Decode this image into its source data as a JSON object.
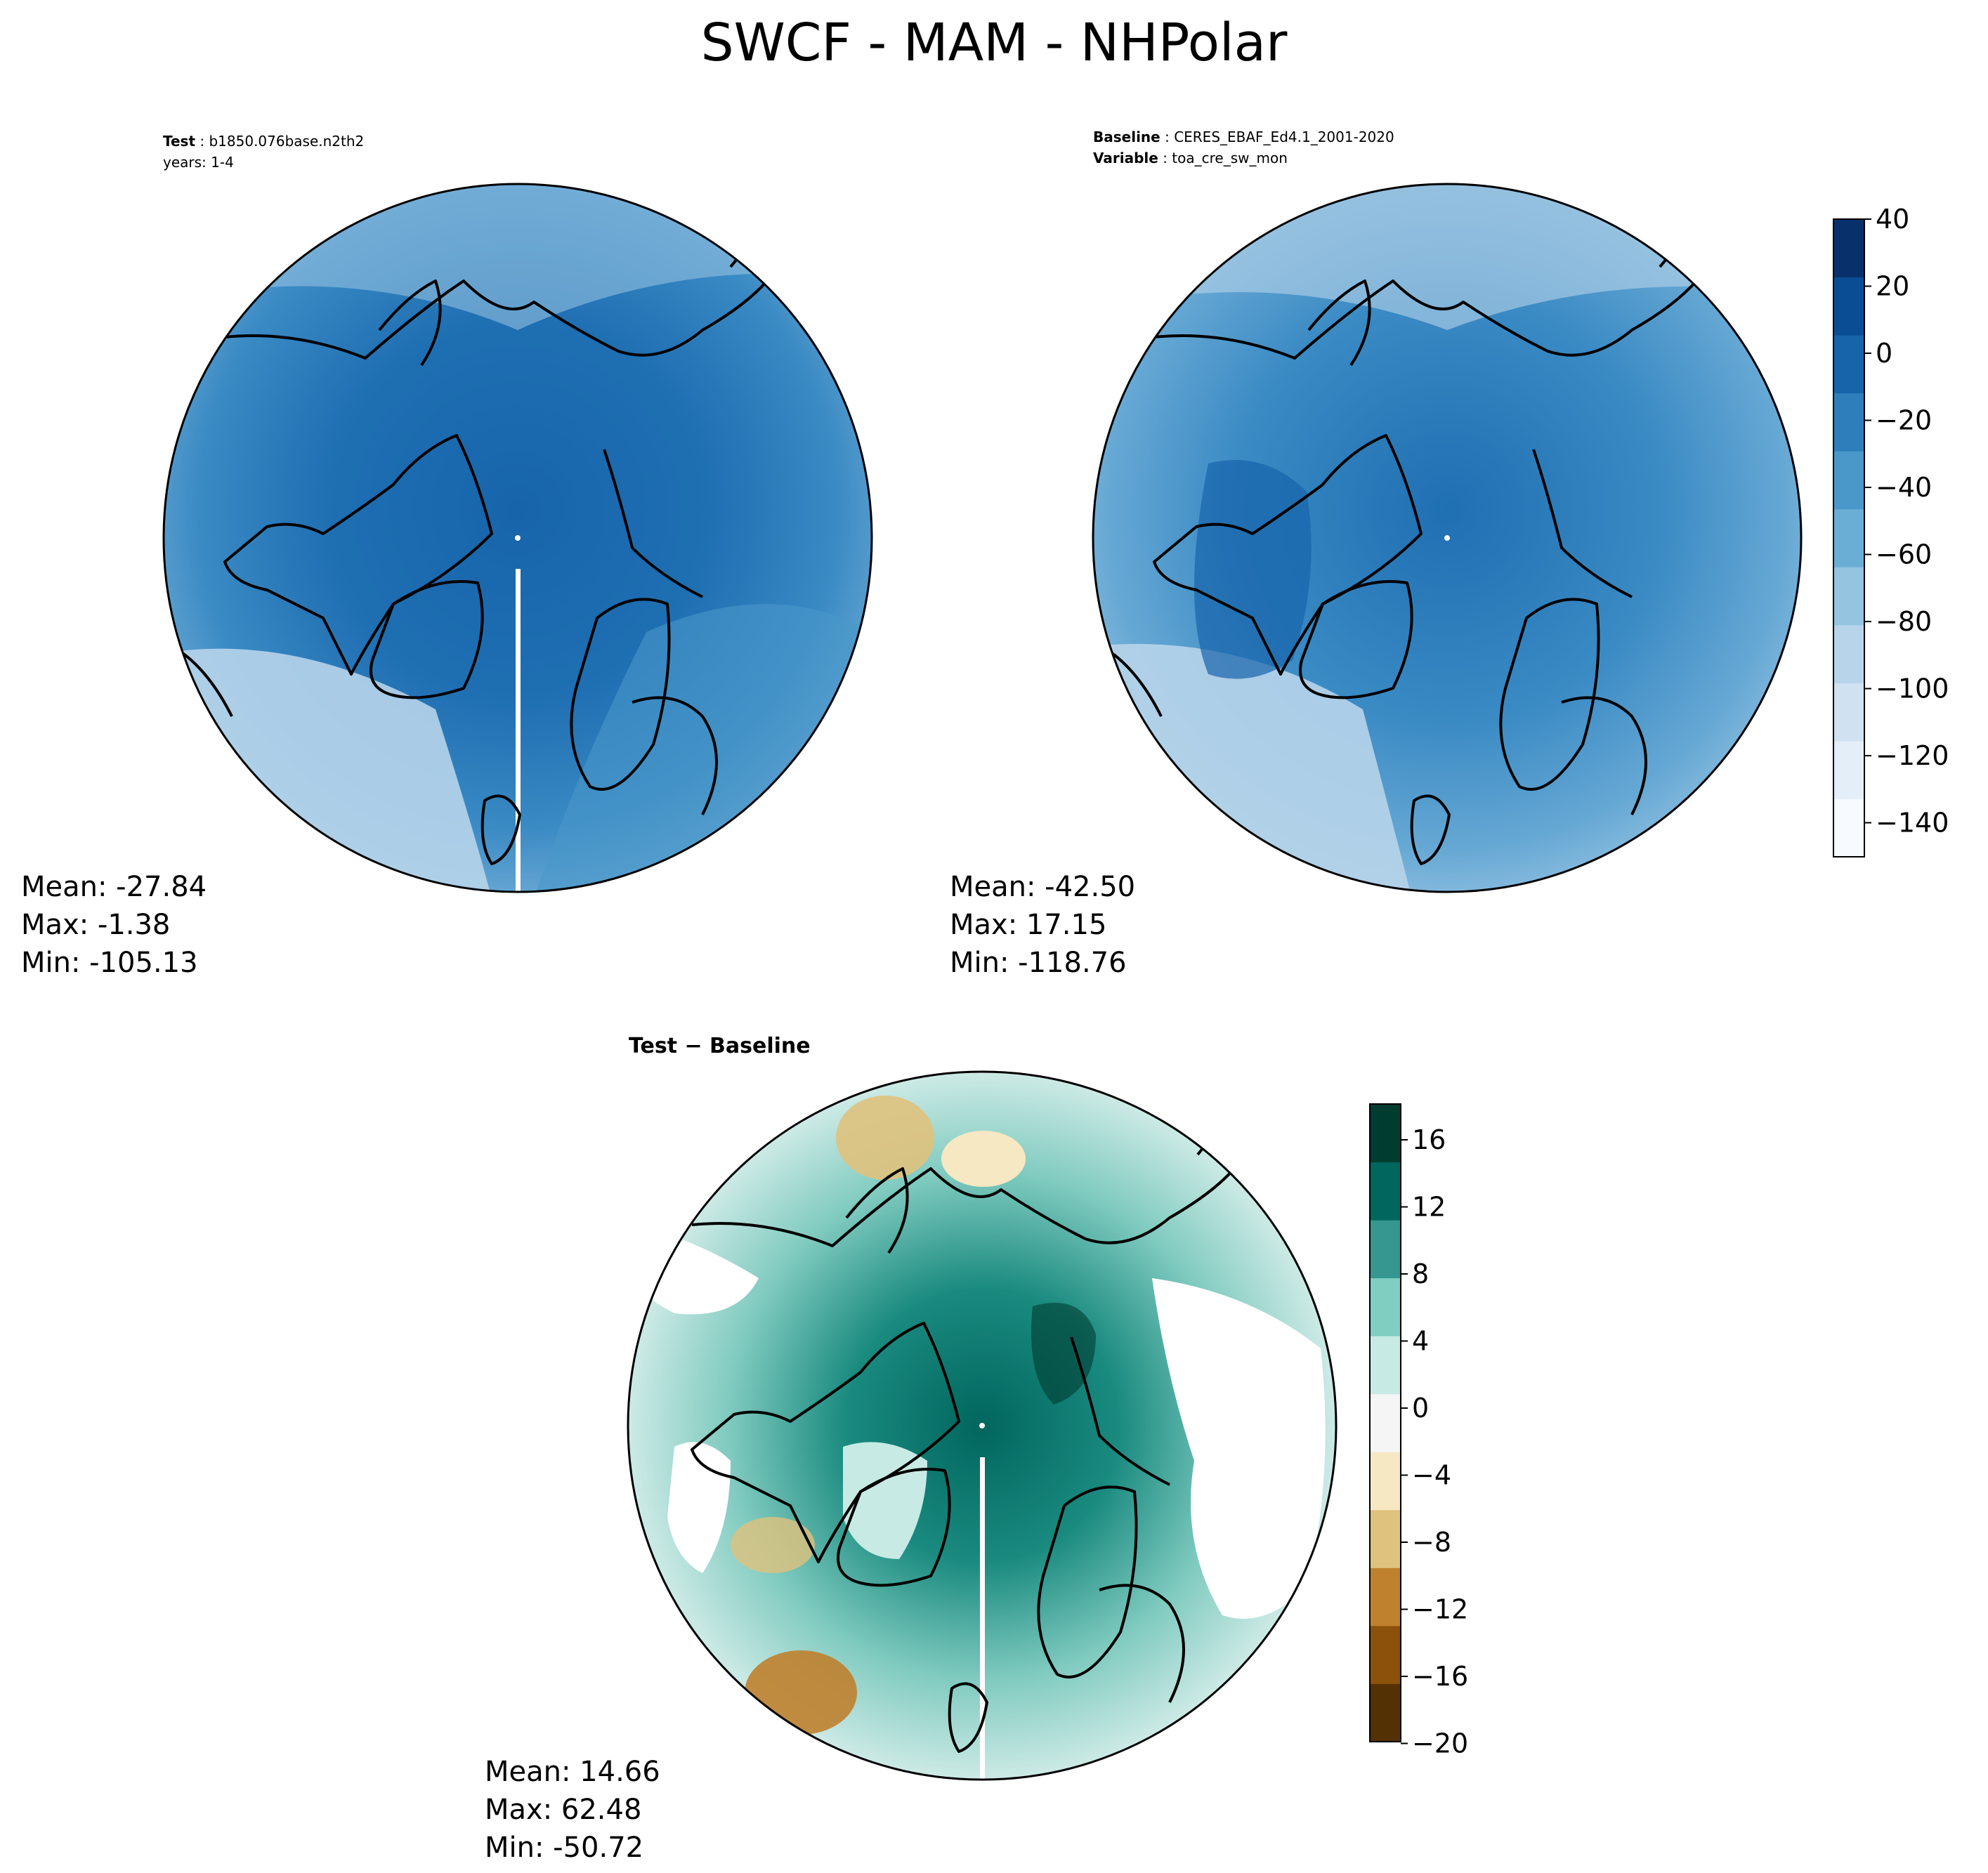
{
  "figure": {
    "title": "SWCF - MAM - NHPolar"
  },
  "panels": {
    "test": {
      "label": "Test",
      "name": "b1850.076base.n2th2",
      "years": "years: 1-4",
      "stats": {
        "mean": "Mean: -27.84",
        "max": "Max: -1.38",
        "min": "Min: -105.13"
      }
    },
    "baseline": {
      "label": "Baseline",
      "name": "CERES_EBAF_Ed4.1_2001-2020",
      "variable_label": "Variable",
      "variable": "toa_cre_sw_mon",
      "stats": {
        "mean": "Mean: -42.50",
        "max": "Max: 17.15",
        "min": "Min: -118.76"
      }
    },
    "diff": {
      "title": "Test − Baseline",
      "stats": {
        "mean": "Mean: 14.66",
        "max": "Max: 62.48",
        "min": "Min: -50.72"
      }
    }
  },
  "colorbars": {
    "main": {
      "ticks": [
        "40",
        "20",
        "0",
        "−20",
        "−40",
        "−60",
        "−80",
        "−100",
        "−120",
        "−140"
      ],
      "colors": [
        "#f7fbff",
        "#e3eef9",
        "#d0e1f2",
        "#b7d4ea",
        "#94c4df",
        "#6aaed6",
        "#4a98c9",
        "#2e7ebc",
        "#1764ab",
        "#0b4d94",
        "#08306b"
      ]
    },
    "diff": {
      "ticks": [
        "16",
        "12",
        "8",
        "4",
        "0",
        "−4",
        "−8",
        "−12",
        "−16",
        "−20"
      ],
      "colors": [
        "#543005",
        "#8c510a",
        "#bf812d",
        "#dfc27d",
        "#f6e8c3",
        "#f5f5f5",
        "#c7eae5",
        "#80cdc1",
        "#35978f",
        "#01665e",
        "#003c30"
      ]
    }
  }
}
